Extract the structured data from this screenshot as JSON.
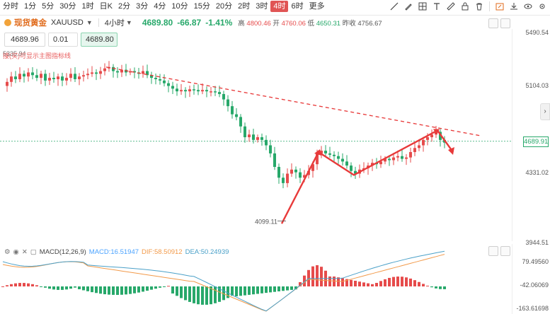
{
  "toolbar": {
    "timeframes": [
      "分时",
      "1分",
      "5分",
      "30分",
      "1时",
      "日K",
      "2分",
      "3分",
      "4分",
      "10分",
      "15分",
      "20分",
      "2时",
      "3时",
      "4时",
      "6时",
      "更多"
    ],
    "active_timeframe": "4时",
    "tool_icons": [
      "trend-line-icon",
      "pen-icon",
      "grid-icon",
      "text-icon",
      "ruler-icon",
      "lock-icon",
      "delete-icon",
      "snapshot-icon",
      "save-icon",
      "visibility-icon",
      "settings-icon"
    ]
  },
  "header": {
    "symbol_name": "现货黄金",
    "symbol_code": "XAUUSD",
    "interval": "4小时",
    "last": "4689.80",
    "change": "-66.87",
    "change_pct": "-1.41%",
    "high_label": "高",
    "high": "4800.46",
    "open_label": "开",
    "open": "4760.06",
    "low_label": "低",
    "low": "4650.31",
    "prev_label": "昨收",
    "prev": "4756.67"
  },
  "trade": {
    "sell": "4689.96",
    "qty": "0.01",
    "buy": "4689.80"
  },
  "note": {
    "hi": "5335.94",
    "prefix": "接",
    "text": "(买)可显示主图指标线"
  },
  "price_axis": {
    "labels": [
      "5490.54",
      "5104.03",
      "4331.02",
      "3944.51"
    ],
    "last_tag": "4689.91",
    "low_marker": "4099.11"
  },
  "macd": {
    "name": "MACD(12,26,9)",
    "macd": "MACD:16.51947",
    "dif": "DIF:58.50912",
    "dea": "DEA:50.24939",
    "axis": [
      "79.49560",
      "-42.06069",
      "-163.61698"
    ]
  },
  "colors": {
    "up": "#e64b4b",
    "down": "#27a86a",
    "trend": "#e83a3a",
    "dif": "#f29a4a",
    "dea": "#4aa0c8"
  }
}
